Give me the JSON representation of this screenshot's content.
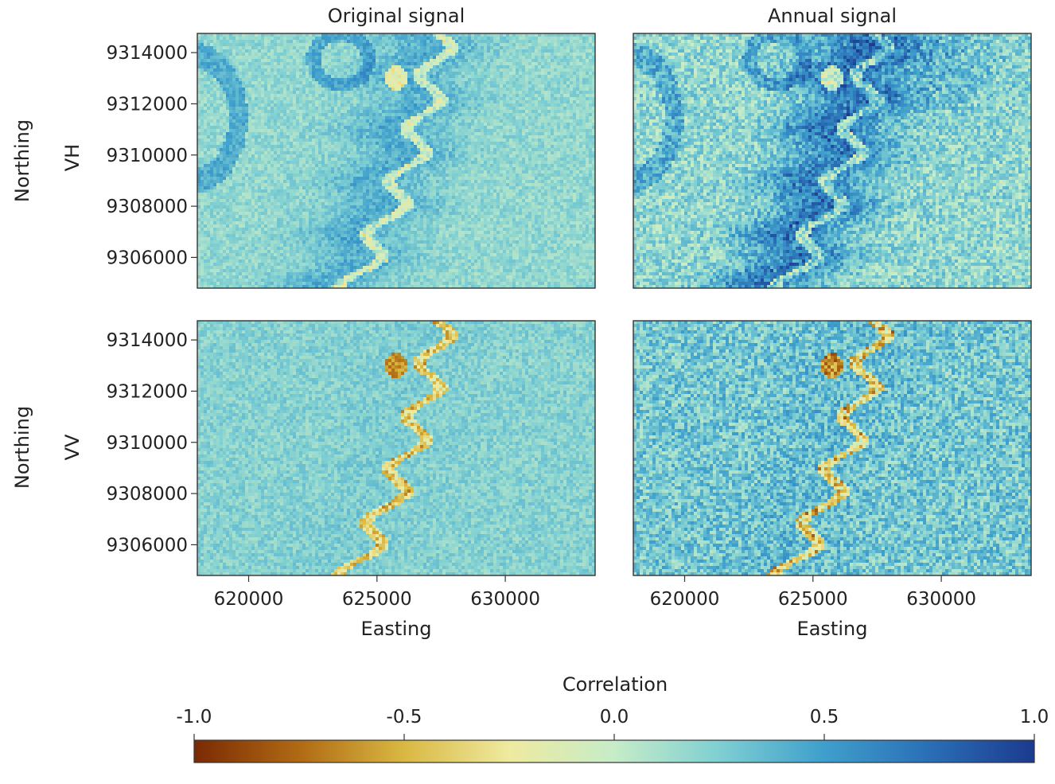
{
  "chart_data": {
    "type": "heatmap",
    "column_titles": [
      "Original signal",
      "Annual signal"
    ],
    "row_labels": [
      "VH",
      "VV"
    ],
    "ylabel": "Northing",
    "xlabel": "Easting",
    "x_ticks": [
      620000,
      625000,
      630000
    ],
    "x_tick_labels": [
      "620000",
      "625000",
      "630000"
    ],
    "y_ticks": [
      9314000,
      9312000,
      9310000,
      9308000,
      9306000
    ],
    "y_tick_labels": [
      "9314000",
      "9312000",
      "9310000",
      "9308000",
      "9306000"
    ],
    "xlim": [
      618000,
      633500
    ],
    "ylim": [
      9304800,
      9314750
    ],
    "panels": [
      {
        "row": "VH",
        "column": "Original signal",
        "background_mean": 0.18,
        "noise": 0.12,
        "river_strength": 0.55,
        "blue_band": 0.3,
        "lake_feature": true
      },
      {
        "row": "VH",
        "column": "Annual signal",
        "background_mean": 0.18,
        "noise": 0.22,
        "river_strength": 0.6,
        "blue_band": 0.62,
        "lake_feature": true
      },
      {
        "row": "VV",
        "column": "Original signal",
        "background_mean": 0.22,
        "noise": 0.12,
        "river_strength": 0.8,
        "blue_band": 0.05,
        "lake_feature": false
      },
      {
        "row": "VV",
        "column": "Annual signal",
        "background_mean": 0.28,
        "noise": 0.24,
        "river_strength": 0.9,
        "blue_band": 0.1,
        "lake_feature": false
      }
    ],
    "colorbar": {
      "label": "Correlation",
      "range": [
        -1.0,
        1.0
      ],
      "ticks": [
        -1.0,
        -0.5,
        0.0,
        0.5,
        1.0
      ],
      "tick_labels": [
        "-1.0",
        "-0.5",
        "0.0",
        "0.5",
        "1.0"
      ],
      "colors": [
        "#7a2a04",
        "#b06a14",
        "#d9b842",
        "#eeeaa0",
        "#c6ecc8",
        "#7fcfd2",
        "#3f9fcc",
        "#2a6fb6",
        "#1c3a8e"
      ],
      "orientation": "horizontal",
      "placement": "bottom"
    },
    "grid": false
  }
}
